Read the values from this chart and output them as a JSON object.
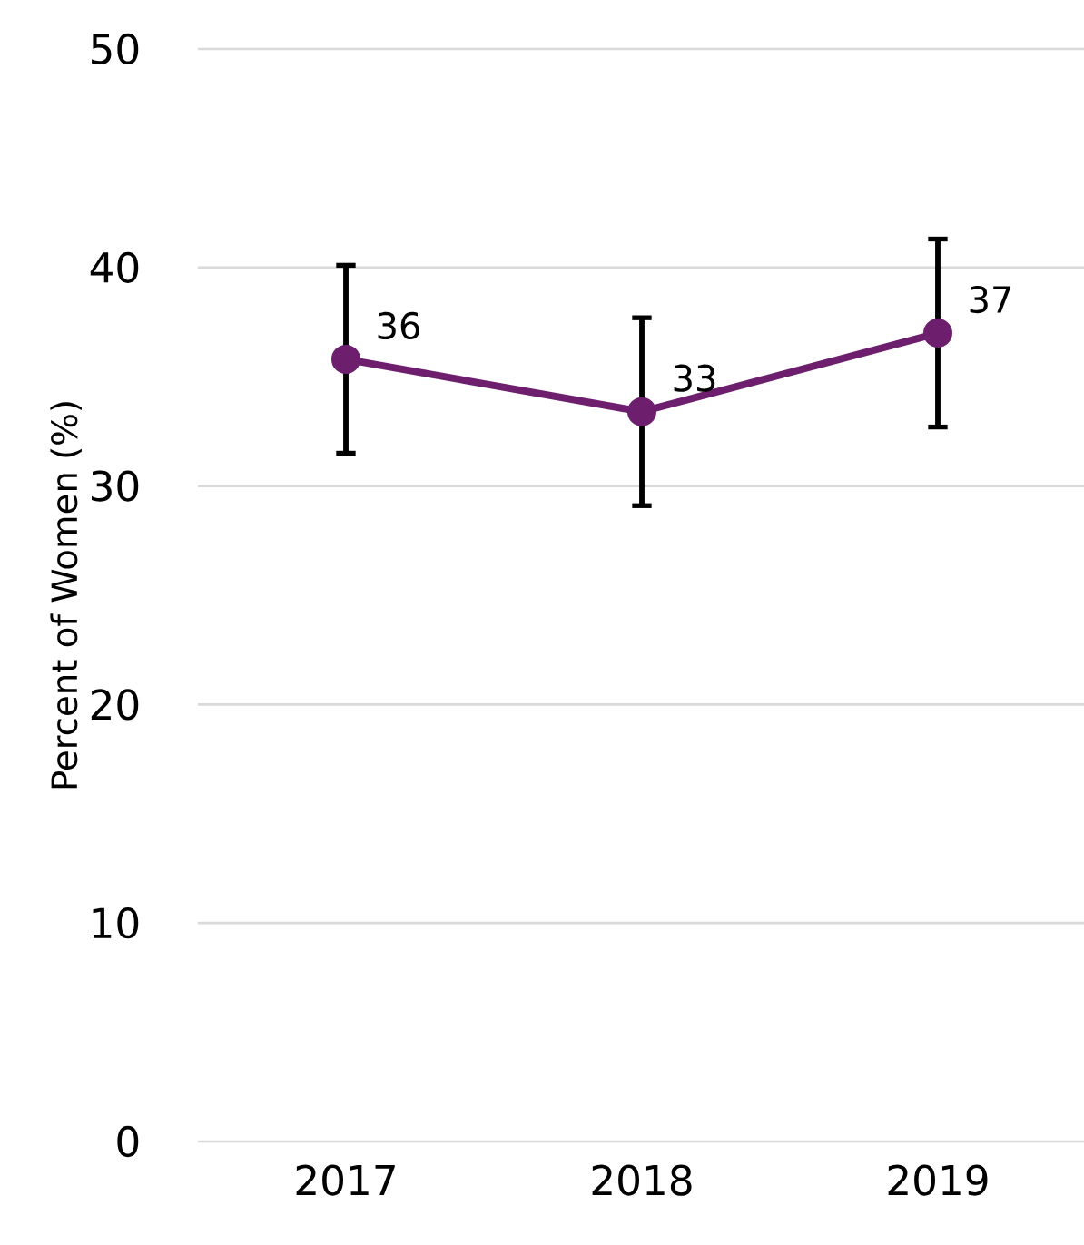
{
  "chart_data": {
    "type": "line",
    "ylabel": "Percent of Women (%)",
    "categories": [
      "2017",
      "2018",
      "2019"
    ],
    "series": [
      {
        "color": "#6d1f6e",
        "values": [
          35.8,
          33.4,
          37.0
        ],
        "errors": [
          4.3,
          4.3,
          4.3
        ],
        "value_labels": [
          "36",
          "33",
          "37"
        ]
      }
    ],
    "ylim": [
      0,
      50
    ],
    "yticks": [
      0,
      10,
      20,
      30,
      40,
      50
    ],
    "grid": "y",
    "marker": "circle",
    "line_style": "solid"
  }
}
